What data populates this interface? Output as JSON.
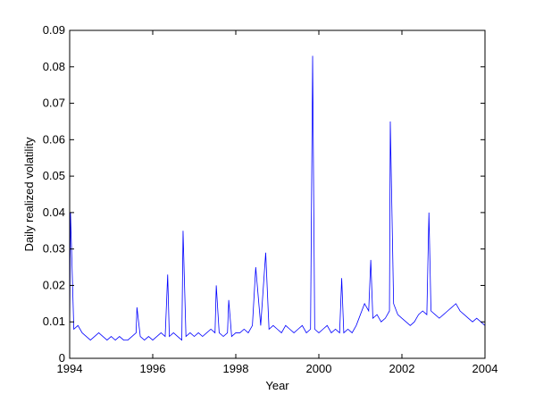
{
  "chart_data": {
    "type": "line",
    "title": "",
    "xlabel": "Year",
    "ylabel": "Daily realized volatility",
    "xlim": [
      1994,
      2004
    ],
    "ylim": [
      0,
      0.09
    ],
    "x_ticks": [
      1994,
      1996,
      1998,
      2000,
      2002,
      2004
    ],
    "y_ticks": [
      0,
      0.01,
      0.02,
      0.03,
      0.04,
      0.05,
      0.06,
      0.07,
      0.08,
      0.09
    ],
    "y_tick_labels": [
      "0",
      "0.01",
      "0.02",
      "0.03",
      "0.04",
      "0.05",
      "0.06",
      "0.07",
      "0.08",
      "0.09"
    ],
    "grid": false,
    "line_color": "#0000ff",
    "series": [
      {
        "x": [
          1994.0,
          1994.02,
          1994.1,
          1994.2,
          1994.3,
          1994.4,
          1994.5,
          1994.6,
          1994.7,
          1994.8,
          1994.9,
          1995.0,
          1995.1,
          1995.2,
          1995.3,
          1995.4,
          1995.5,
          1995.6,
          1995.62,
          1995.7,
          1995.8,
          1995.9,
          1996.0,
          1996.1,
          1996.2,
          1996.3,
          1996.36,
          1996.4,
          1996.5,
          1996.6,
          1996.7,
          1996.73,
          1996.8,
          1996.9,
          1997.0,
          1997.1,
          1997.2,
          1997.3,
          1997.4,
          1997.5,
          1997.53,
          1997.6,
          1997.7,
          1997.8,
          1997.83,
          1997.9,
          1998.0,
          1998.1,
          1998.2,
          1998.3,
          1998.4,
          1998.48,
          1998.6,
          1998.72,
          1998.8,
          1998.9,
          1999.0,
          1999.1,
          1999.2,
          1999.3,
          1999.4,
          1999.5,
          1999.6,
          1999.7,
          1999.8,
          1999.85,
          1999.9,
          2000.0,
          2000.1,
          2000.2,
          2000.3,
          2000.4,
          2000.5,
          2000.55,
          2000.6,
          2000.7,
          2000.8,
          2000.9,
          2001.0,
          2001.1,
          2001.2,
          2001.25,
          2001.3,
          2001.4,
          2001.5,
          2001.6,
          2001.7,
          2001.72,
          2001.8,
          2001.9,
          2002.0,
          2002.1,
          2002.2,
          2002.3,
          2002.4,
          2002.5,
          2002.6,
          2002.65,
          2002.7,
          2002.8,
          2002.9,
          2003.0,
          2003.1,
          2003.2,
          2003.3,
          2003.4,
          2003.5,
          2003.6,
          2003.7,
          2003.8,
          2003.9,
          2004.0
        ],
        "values": [
          0.007,
          0.04,
          0.008,
          0.009,
          0.007,
          0.006,
          0.005,
          0.006,
          0.007,
          0.006,
          0.005,
          0.006,
          0.005,
          0.006,
          0.005,
          0.005,
          0.006,
          0.007,
          0.014,
          0.006,
          0.005,
          0.006,
          0.005,
          0.006,
          0.007,
          0.006,
          0.023,
          0.006,
          0.007,
          0.006,
          0.005,
          0.035,
          0.006,
          0.007,
          0.006,
          0.007,
          0.006,
          0.007,
          0.008,
          0.007,
          0.02,
          0.007,
          0.006,
          0.007,
          0.016,
          0.006,
          0.007,
          0.007,
          0.008,
          0.007,
          0.009,
          0.025,
          0.009,
          0.029,
          0.008,
          0.009,
          0.008,
          0.007,
          0.009,
          0.008,
          0.007,
          0.008,
          0.009,
          0.007,
          0.008,
          0.083,
          0.008,
          0.007,
          0.008,
          0.009,
          0.007,
          0.008,
          0.007,
          0.022,
          0.007,
          0.008,
          0.007,
          0.009,
          0.012,
          0.015,
          0.013,
          0.027,
          0.011,
          0.012,
          0.01,
          0.011,
          0.013,
          0.065,
          0.015,
          0.012,
          0.011,
          0.01,
          0.009,
          0.01,
          0.012,
          0.013,
          0.012,
          0.04,
          0.013,
          0.012,
          0.011,
          0.012,
          0.013,
          0.014,
          0.015,
          0.013,
          0.012,
          0.011,
          0.01,
          0.011,
          0.01,
          0.009
        ]
      }
    ]
  }
}
